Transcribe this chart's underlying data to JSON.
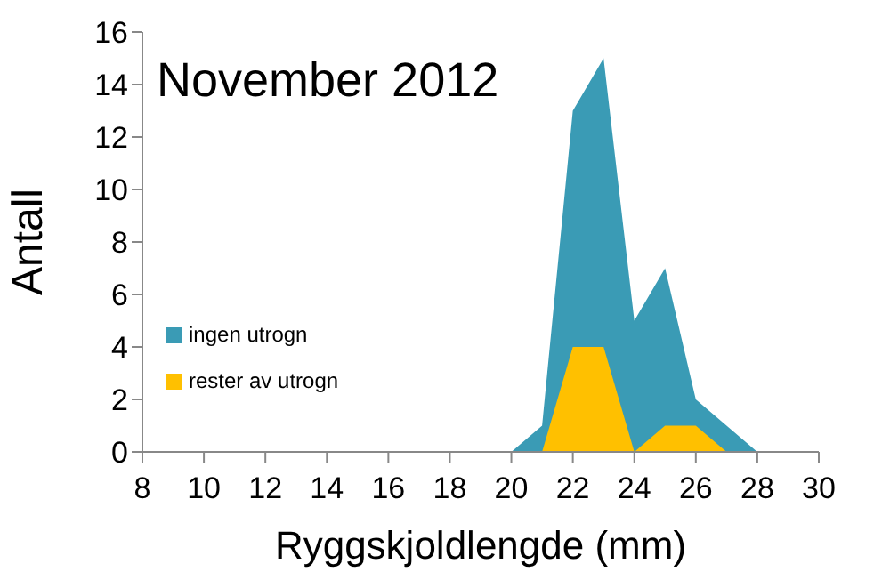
{
  "chart_data": {
    "type": "area",
    "title": "November 2012",
    "xlabel": "Ryggskjoldlengde (mm)",
    "ylabel": "Antall",
    "x": [
      20,
      21,
      22,
      23,
      24,
      25,
      26,
      27,
      28
    ],
    "series": [
      {
        "name": "ingen utrogn",
        "color": "#3a9bb5",
        "values": [
          0,
          1,
          13,
          15,
          5,
          7,
          2,
          1,
          0
        ]
      },
      {
        "name": "rester av utrogn",
        "color": "#ffc000",
        "values": [
          null,
          0,
          4,
          4,
          0,
          1,
          1,
          0,
          null
        ]
      }
    ],
    "xlim": [
      8,
      30
    ],
    "xticks": [
      8,
      10,
      12,
      14,
      16,
      18,
      20,
      22,
      24,
      26,
      28,
      30
    ],
    "ylim": [
      0,
      16
    ],
    "yticks": [
      0,
      2,
      4,
      6,
      8,
      10,
      12,
      14,
      16
    ],
    "grid": false,
    "legend": "bottom left"
  }
}
